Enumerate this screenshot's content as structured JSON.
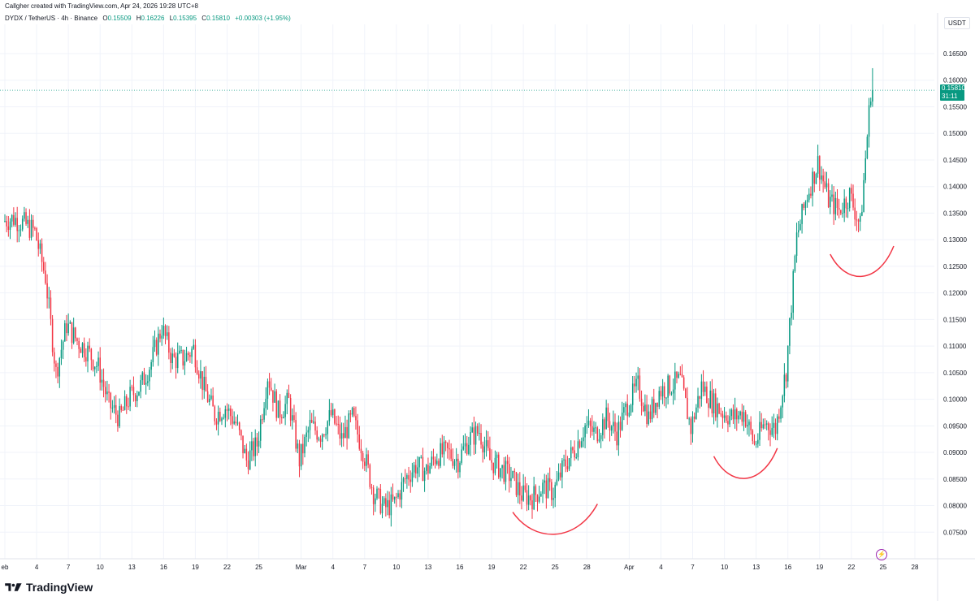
{
  "header": {
    "created_text": "Callgher created with TradingView.com, Apr 24, 2026 19:28 UTC+8"
  },
  "symbol_bar": {
    "symbol": "DYDX / TetherUS · 4h · Binance",
    "o_label": "O",
    "o_value": "0.15509",
    "h_label": "H",
    "h_value": "0.16226",
    "l_label": "L",
    "l_value": "0.15395",
    "c_label": "C",
    "c_value": "0.15810",
    "change": "+0.00303 (+1.95%)"
  },
  "currency_label": "USDT",
  "last_price": {
    "value": "0.15810",
    "countdown": "31:11"
  },
  "brand": {
    "name": "TradingView"
  },
  "colors": {
    "up": "#089981",
    "down": "#f23645",
    "annotation": "#f23645",
    "grid": "#f0f3fa",
    "price_line": "#089981",
    "indicator": "#9c27b0"
  },
  "chart_data": {
    "type": "candlestick",
    "title": "DYDX / TetherUS · 4h · Binance",
    "y_ticks": [
      "0.16500",
      "0.16000",
      "0.15500",
      "0.15000",
      "0.14500",
      "0.14000",
      "0.13500",
      "0.13000",
      "0.12500",
      "0.12000",
      "0.11500",
      "0.11000",
      "0.10500",
      "0.10000",
      "0.09500",
      "0.09000",
      "0.08500",
      "0.08000",
      "0.07500"
    ],
    "ylim": [
      0.07,
      0.1705
    ],
    "x_ticks": [
      "eb",
      "4",
      "7",
      "10",
      "13",
      "16",
      "19",
      "22",
      "25",
      "Mar",
      "4",
      "7",
      "10",
      "13",
      "16",
      "19",
      "22",
      "25",
      "28",
      "Apr",
      "4",
      "7",
      "10",
      "13",
      "16",
      "19",
      "22",
      "25",
      "28"
    ],
    "x_start": "Feb 1",
    "x_end": "Apr 28",
    "grid": true,
    "annotations": [
      {
        "type": "curve",
        "from": "Mar 21",
        "to": "Mar 29",
        "low": 0.0745
      },
      {
        "type": "curve",
        "from": "Apr 9",
        "to": "Apr 15",
        "low": 0.085
      },
      {
        "type": "curve",
        "from": "Apr 20",
        "to": "Apr 26",
        "low": 0.123
      }
    ],
    "anchors": [
      {
        "date": "Feb 1",
        "value": 0.1335
      },
      {
        "date": "Feb 2",
        "value": 0.134
      },
      {
        "date": "Feb 3",
        "value": 0.133
      },
      {
        "date": "Feb 4",
        "value": 0.1315
      },
      {
        "date": "Feb 5",
        "value": 0.123
      },
      {
        "date": "Feb 6",
        "value": 0.105
      },
      {
        "date": "Feb 7",
        "value": 0.114
      },
      {
        "date": "Feb 8",
        "value": 0.111
      },
      {
        "date": "Feb 9",
        "value": 0.109
      },
      {
        "date": "Feb 10",
        "value": 0.106
      },
      {
        "date": "Feb 11",
        "value": 0.099
      },
      {
        "date": "Feb 12",
        "value": 0.0965
      },
      {
        "date": "Feb 13",
        "value": 0.1005
      },
      {
        "date": "Feb 14",
        "value": 0.1025
      },
      {
        "date": "Feb 15",
        "value": 0.107
      },
      {
        "date": "Feb 16",
        "value": 0.1135
      },
      {
        "date": "Feb 17",
        "value": 0.1075
      },
      {
        "date": "Feb 18",
        "value": 0.1075
      },
      {
        "date": "Feb 19",
        "value": 0.1095
      },
      {
        "date": "Feb 20",
        "value": 0.102
      },
      {
        "date": "Feb 21",
        "value": 0.097
      },
      {
        "date": "Feb 22",
        "value": 0.0985
      },
      {
        "date": "Feb 23",
        "value": 0.0955
      },
      {
        "date": "Feb 24",
        "value": 0.0885
      },
      {
        "date": "Feb 25",
        "value": 0.0915
      },
      {
        "date": "Feb 26",
        "value": 0.1045
      },
      {
        "date": "Feb 27",
        "value": 0.0975
      },
      {
        "date": "Feb 28",
        "value": 0.0995
      },
      {
        "date": "Mar 1",
        "value": 0.0885
      },
      {
        "date": "Mar 2",
        "value": 0.095
      },
      {
        "date": "Mar 3",
        "value": 0.0935
      },
      {
        "date": "Mar 4",
        "value": 0.097
      },
      {
        "date": "Mar 5",
        "value": 0.0925
      },
      {
        "date": "Mar 6",
        "value": 0.0965
      },
      {
        "date": "Mar 7",
        "value": 0.0905
      },
      {
        "date": "Mar 8",
        "value": 0.0825
      },
      {
        "date": "Mar 9",
        "value": 0.0795
      },
      {
        "date": "Mar 10",
        "value": 0.0805
      },
      {
        "date": "Mar 11",
        "value": 0.085
      },
      {
        "date": "Mar 12",
        "value": 0.0875
      },
      {
        "date": "Mar 13",
        "value": 0.0865
      },
      {
        "date": "Mar 14",
        "value": 0.0895
      },
      {
        "date": "Mar 15",
        "value": 0.09
      },
      {
        "date": "Mar 16",
        "value": 0.0885
      },
      {
        "date": "Mar 17",
        "value": 0.0925
      },
      {
        "date": "Mar 18",
        "value": 0.094
      },
      {
        "date": "Mar 19",
        "value": 0.0885
      },
      {
        "date": "Mar 20",
        "value": 0.087
      },
      {
        "date": "Mar 21",
        "value": 0.0855
      },
      {
        "date": "Mar 22",
        "value": 0.082
      },
      {
        "date": "Mar 23",
        "value": 0.0815
      },
      {
        "date": "Mar 24",
        "value": 0.0835
      },
      {
        "date": "Mar 25",
        "value": 0.0825
      },
      {
        "date": "Mar 26",
        "value": 0.0875
      },
      {
        "date": "Mar 27",
        "value": 0.0905
      },
      {
        "date": "Mar 28",
        "value": 0.095
      },
      {
        "date": "Mar 29",
        "value": 0.0935
      },
      {
        "date": "Mar 30",
        "value": 0.0965
      },
      {
        "date": "Mar 31",
        "value": 0.0935
      },
      {
        "date": "Apr 1",
        "value": 0.099
      },
      {
        "date": "Apr 2",
        "value": 0.1025
      },
      {
        "date": "Apr 3",
        "value": 0.0965
      },
      {
        "date": "Apr 4",
        "value": 0.1015
      },
      {
        "date": "Apr 5",
        "value": 0.1025
      },
      {
        "date": "Apr 6",
        "value": 0.1035
      },
      {
        "date": "Apr 7",
        "value": 0.0945
      },
      {
        "date": "Apr 8",
        "value": 0.1025
      },
      {
        "date": "Apr 9",
        "value": 0.0995
      },
      {
        "date": "Apr 10",
        "value": 0.0975
      },
      {
        "date": "Apr 11",
        "value": 0.0965
      },
      {
        "date": "Apr 12",
        "value": 0.0975
      },
      {
        "date": "Apr 13",
        "value": 0.0915
      },
      {
        "date": "Apr 14",
        "value": 0.0955
      },
      {
        "date": "Apr 15",
        "value": 0.0945
      },
      {
        "date": "Apr 16",
        "value": 0.1055
      },
      {
        "date": "Apr 17",
        "value": 0.1305
      },
      {
        "date": "Apr 18",
        "value": 0.1385
      },
      {
        "date": "Apr 19",
        "value": 0.1445
      },
      {
        "date": "Apr 20",
        "value": 0.1375
      },
      {
        "date": "Apr 21",
        "value": 0.1355
      },
      {
        "date": "Apr 22",
        "value": 0.1385
      },
      {
        "date": "Apr 23",
        "value": 0.1325
      },
      {
        "date": "Apr 24",
        "value": 0.1581
      }
    ]
  }
}
